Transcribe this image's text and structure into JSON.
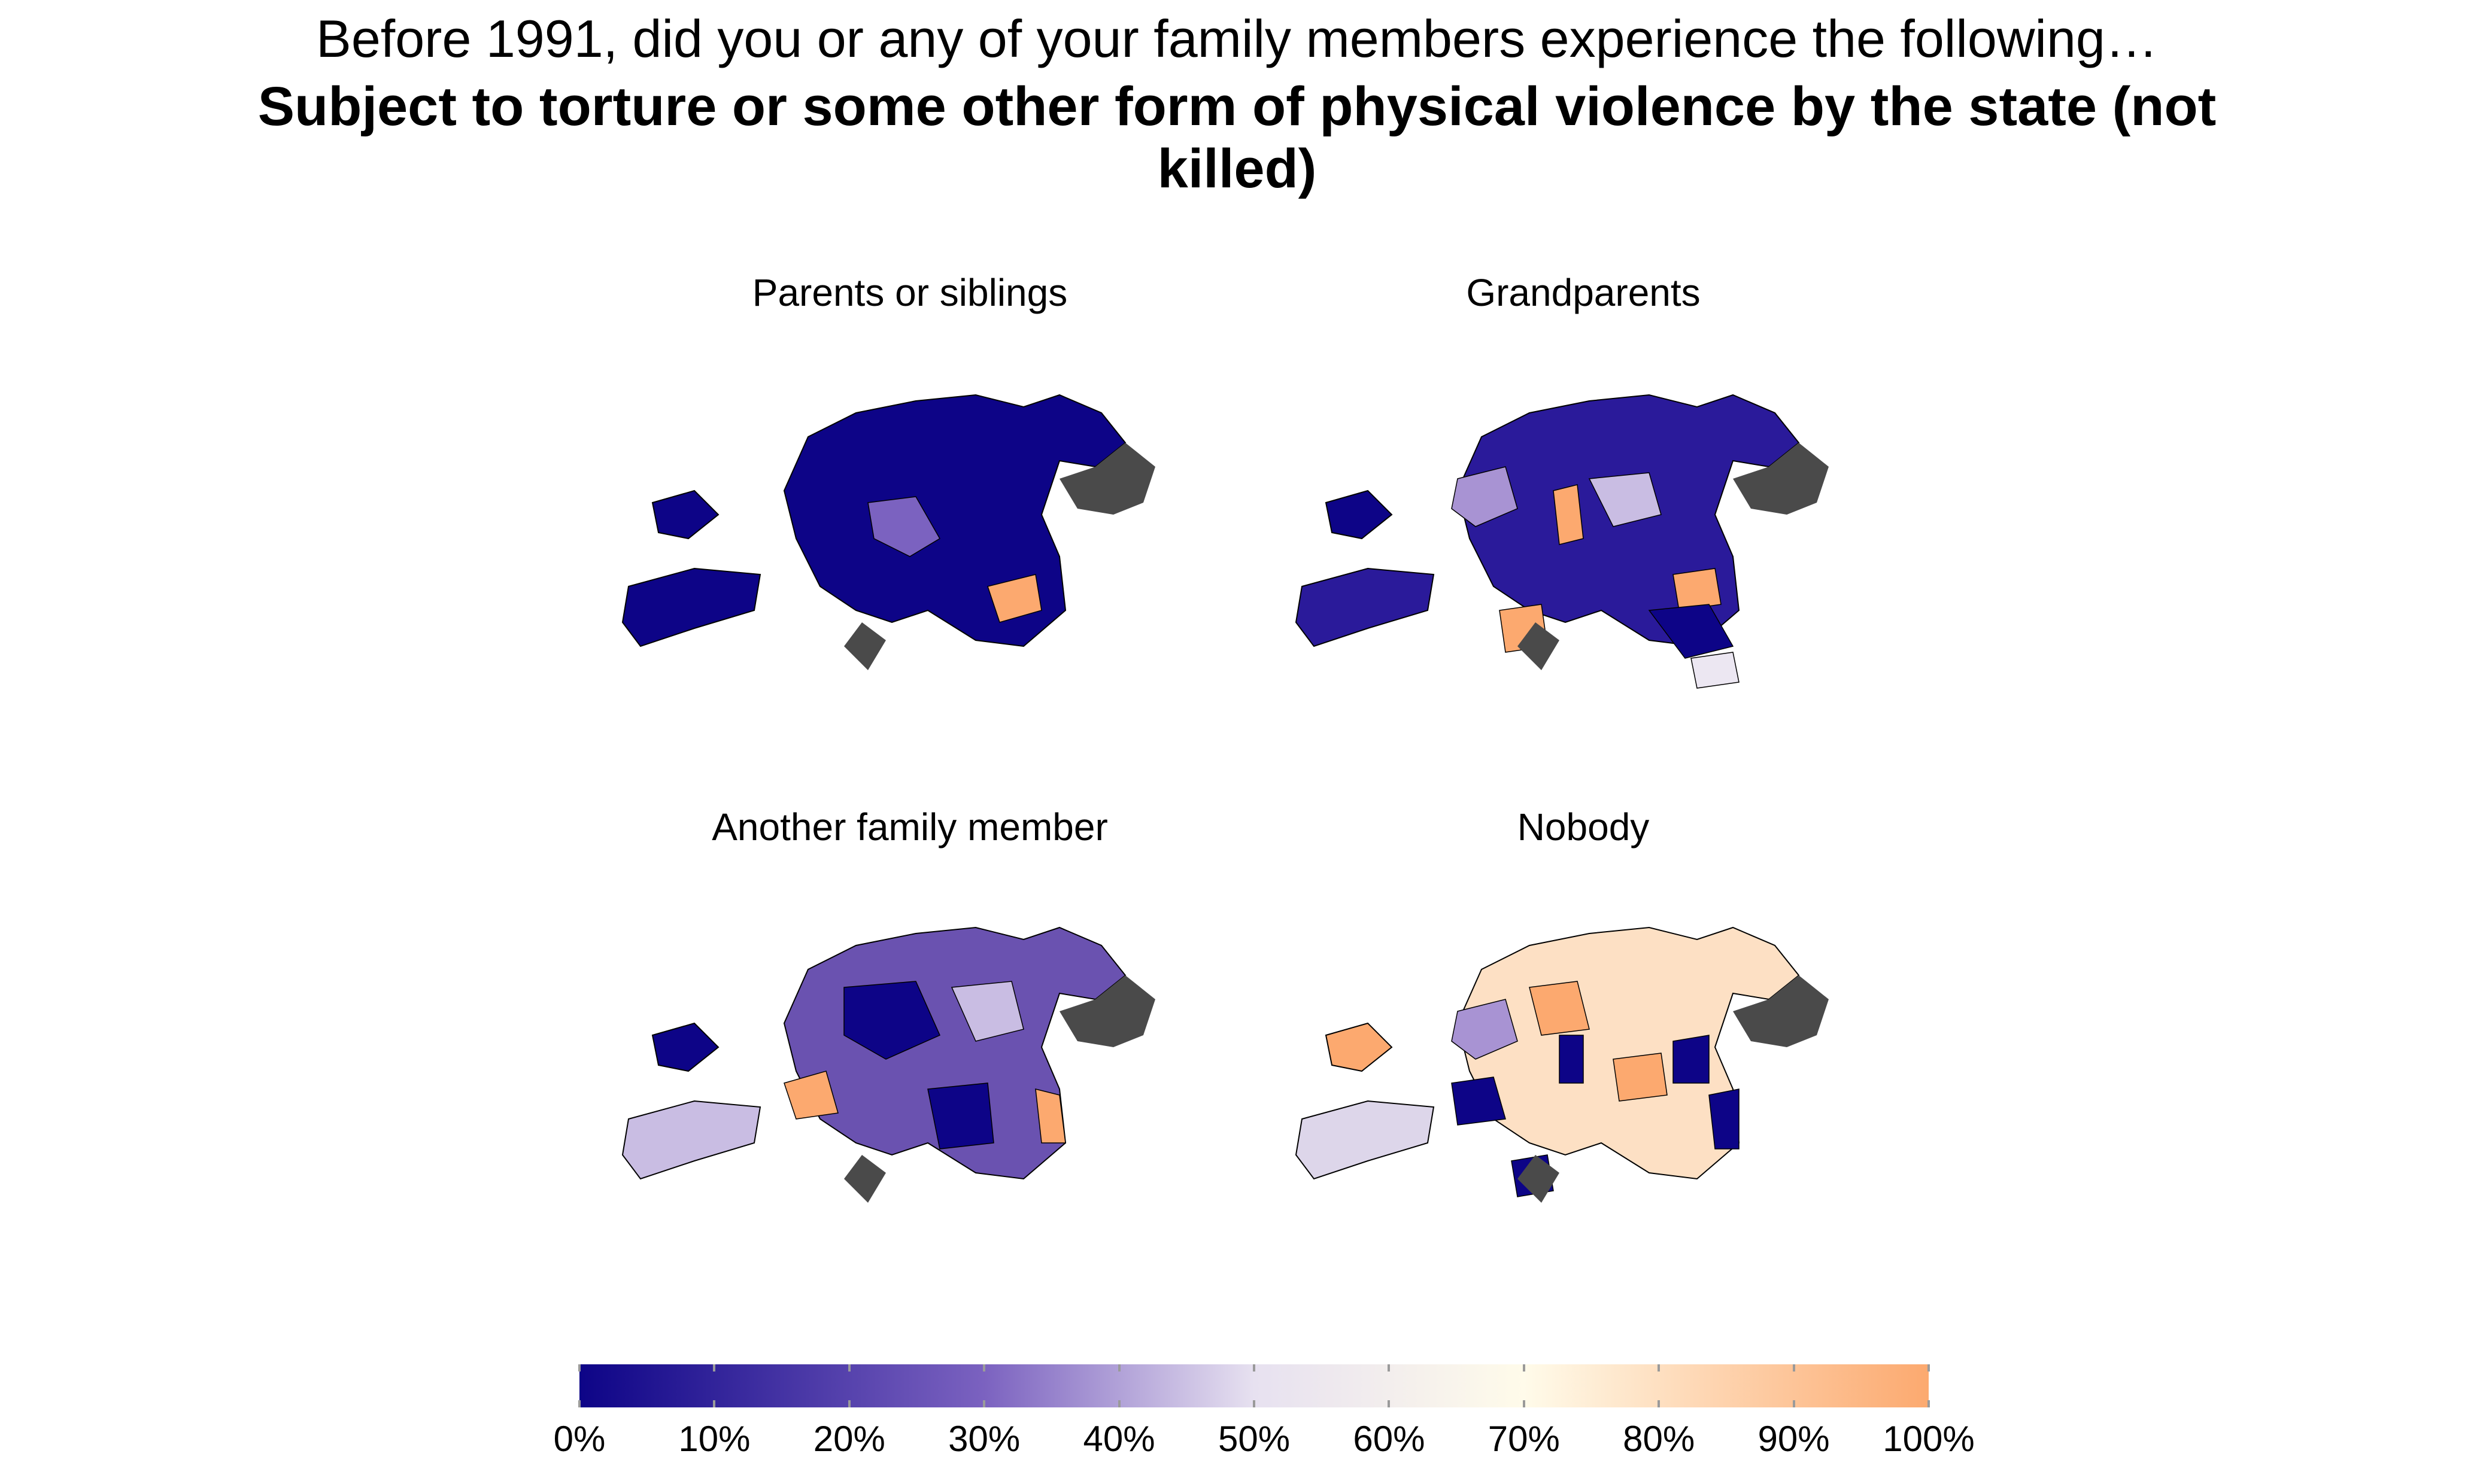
{
  "title": {
    "main": "Before 1991, did you or any of your family members experience the following…",
    "sub_line1": "Subject to torture or some other form of physical violence by the state (not",
    "sub_line2": "killed)"
  },
  "colors": {
    "low": "#0d0487",
    "mid": "#fffbea",
    "high": "#fca96f",
    "missing": "#4a4a4a",
    "border": "#000000"
  },
  "panels": [
    {
      "title": "Parents or siblings",
      "dominant_color": "#0d0487"
    },
    {
      "title": "Grandparents",
      "dominant_color": "#2a1a9a"
    },
    {
      "title": "Another family member",
      "dominant_color": "#6a52b0"
    },
    {
      "title": "Nobody",
      "dominant_color": "#fde0c4"
    }
  ],
  "legend": {
    "ticks": [
      "0%",
      "10%",
      "20%",
      "30%",
      "40%",
      "50%",
      "60%",
      "70%",
      "80%",
      "90%",
      "100%"
    ]
  }
}
